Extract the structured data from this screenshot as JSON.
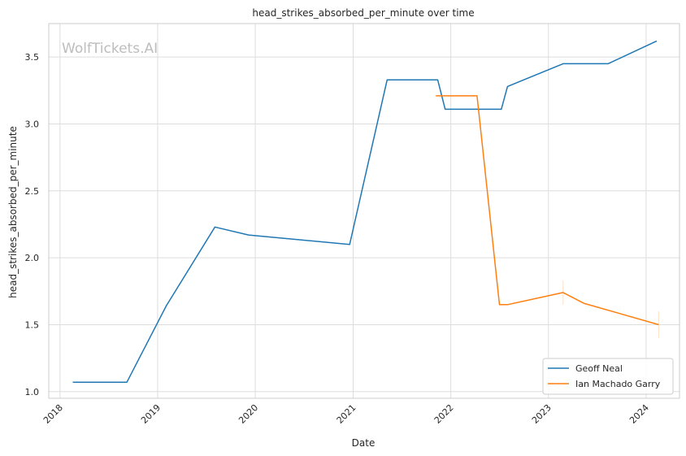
{
  "chart_data": {
    "type": "line",
    "title": "head_strikes_absorbed_per_minute over time",
    "xlabel": "Date",
    "ylabel": "head_strikes_absorbed_per_minute",
    "watermark": "WolfTickets.AI",
    "xlim": [
      "2017-11-20",
      "2024-05-05"
    ],
    "ylim": [
      0.95,
      3.75
    ],
    "x_ticks": [
      "2018-01-01",
      "2019-01-01",
      "2020-01-01",
      "2021-01-01",
      "2022-01-01",
      "2023-01-01",
      "2024-01-01"
    ],
    "x_tick_labels": [
      "2018",
      "2019",
      "2020",
      "2021",
      "2022",
      "2023",
      "2024"
    ],
    "y_ticks": [
      1.0,
      1.5,
      2.0,
      2.5,
      3.0,
      3.5
    ],
    "y_tick_labels": [
      "1.0",
      "1.5",
      "2.0",
      "2.5",
      "3.0",
      "3.5"
    ],
    "grid": true,
    "legend_position": "lower-right",
    "series": [
      {
        "name": "Geoff Neal",
        "color": "#1f77b4",
        "x": [
          "2018-02-18",
          "2018-09-08",
          "2019-02-02",
          "2019-08-03",
          "2019-12-07",
          "2020-12-19",
          "2021-05-08",
          "2021-11-13",
          "2021-12-11",
          "2022-07-09",
          "2022-08-01",
          "2023-02-25",
          "2023-08-12",
          "2024-02-10"
        ],
        "y": [
          1.07,
          1.07,
          1.64,
          2.23,
          2.17,
          2.1,
          3.33,
          3.33,
          3.11,
          3.11,
          3.28,
          3.45,
          3.45,
          3.62
        ]
      },
      {
        "name": "Ian Machado Garry",
        "color": "#ff7f0e",
        "x": [
          "2021-11-06",
          "2022-04-09",
          "2022-07-02",
          "2022-08-01",
          "2023-02-25",
          "2023-05-13",
          "2024-02-17"
        ],
        "y": [
          3.21,
          3.21,
          1.65,
          1.65,
          1.74,
          1.66,
          1.5
        ]
      }
    ],
    "error_marks": [
      {
        "series": "Ian Machado Garry",
        "x": "2023-02-25",
        "y_low": 1.65,
        "y_high": 1.83
      },
      {
        "series": "Ian Machado Garry",
        "x": "2024-02-17",
        "y_low": 1.4,
        "y_high": 1.6
      }
    ]
  }
}
